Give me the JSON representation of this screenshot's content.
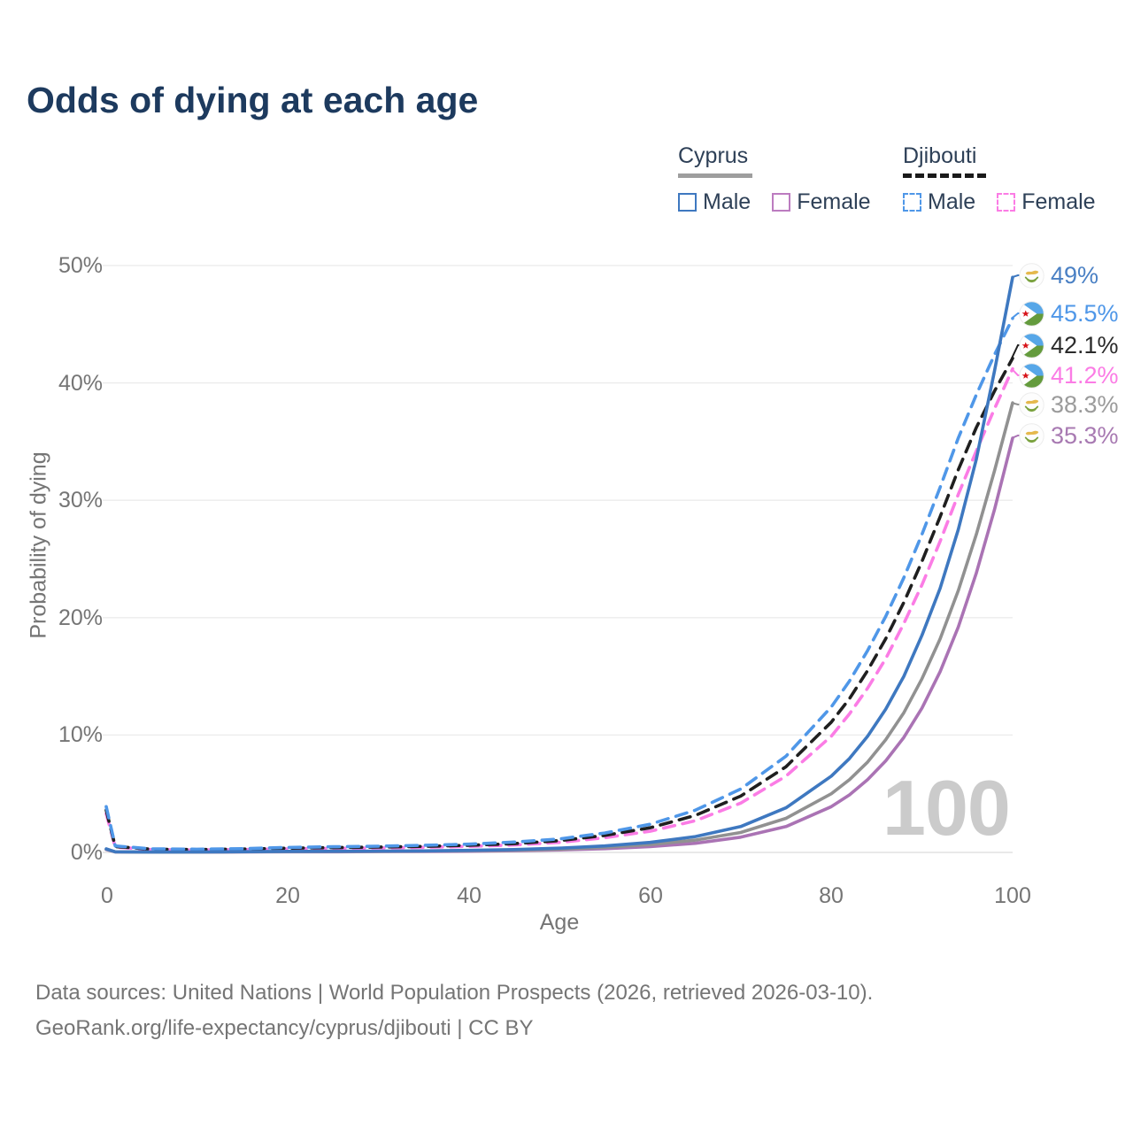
{
  "title": "Odds of dying at each age",
  "legend": {
    "groups": [
      {
        "name": "Cyprus",
        "line_style": "solid",
        "line_color": "#9e9e9e",
        "items": [
          {
            "label": "Male",
            "color": "#3e78c0",
            "dashed": false
          },
          {
            "label": "Female",
            "color": "#bc7cc0",
            "dashed": false
          }
        ]
      },
      {
        "name": "Djibouti",
        "line_style": "dashed",
        "line_color": "#1a1a1a",
        "items": [
          {
            "label": "Male",
            "color": "#4f97e8",
            "dashed": true
          },
          {
            "label": "Female",
            "color": "#fb7ce5",
            "dashed": true
          }
        ]
      }
    ]
  },
  "chart_data": {
    "type": "line",
    "title": "Odds of dying at each age",
    "xlabel": "Age",
    "ylabel": "Probability of dying",
    "xlim": [
      0,
      100
    ],
    "ylim": [
      0,
      50
    ],
    "grid": "horizontal",
    "legend_position": "top-right",
    "xticks": [
      "0",
      "20",
      "40",
      "60",
      "80",
      "100"
    ],
    "ytick_labels": [
      "0%",
      "10%",
      "20%",
      "30%",
      "40%",
      "50%"
    ],
    "ytick_values": [
      0,
      10,
      20,
      30,
      40,
      50
    ],
    "ages": [
      0,
      1,
      5,
      10,
      15,
      20,
      25,
      30,
      35,
      40,
      45,
      50,
      55,
      60,
      65,
      70,
      75,
      80,
      82,
      84,
      86,
      88,
      90,
      92,
      94,
      96,
      98,
      100
    ],
    "series": [
      {
        "id": "cyprus-male",
        "country": "Cyprus",
        "sex": "male",
        "color": "#3e78c0",
        "label_color": "#4a80c4",
        "dash": "solid",
        "flag": "cyprus",
        "end_label": "49%",
        "values": [
          0.3,
          0.05,
          0.03,
          0.04,
          0.06,
          0.09,
          0.1,
          0.11,
          0.13,
          0.17,
          0.24,
          0.36,
          0.55,
          0.85,
          1.35,
          2.2,
          3.8,
          6.5,
          8.0,
          9.9,
          12.2,
          15.0,
          18.5,
          22.5,
          27.5,
          33.5,
          41.0,
          49.0
        ]
      },
      {
        "id": "djibouti-male",
        "country": "Djibouti",
        "sex": "male",
        "color": "#4f97e8",
        "label_color": "#4f97e8",
        "dash": "dashed",
        "flag": "djibouti",
        "end_label": "45.5%",
        "values": [
          3.9,
          0.55,
          0.3,
          0.27,
          0.32,
          0.42,
          0.48,
          0.53,
          0.6,
          0.7,
          0.88,
          1.15,
          1.65,
          2.4,
          3.6,
          5.4,
          8.2,
          12.4,
          14.6,
          17.2,
          20.1,
          23.4,
          27.1,
          31.1,
          35.3,
          39.0,
          42.4,
          45.5
        ]
      },
      {
        "id": "djibouti-total",
        "country": "Djibouti",
        "sex": "both",
        "color": "#1f1f1f",
        "label_color": "#2b2b2b",
        "dash": "dashed",
        "flag": "djibouti",
        "end_label": "42.1%",
        "values": [
          3.6,
          0.5,
          0.27,
          0.24,
          0.28,
          0.36,
          0.41,
          0.45,
          0.51,
          0.6,
          0.75,
          1.0,
          1.45,
          2.1,
          3.15,
          4.8,
          7.3,
          11.1,
          13.1,
          15.5,
          18.2,
          21.3,
          24.8,
          28.6,
          32.6,
          36.2,
          39.3,
          42.1
        ]
      },
      {
        "id": "djibouti-female",
        "country": "Djibouti",
        "sex": "female",
        "color": "#fb7ce5",
        "label_color": "#fb7ce5",
        "dash": "dashed",
        "flag": "djibouti",
        "end_label": "41.2%",
        "values": [
          3.3,
          0.45,
          0.24,
          0.21,
          0.24,
          0.3,
          0.34,
          0.38,
          0.43,
          0.51,
          0.63,
          0.85,
          1.25,
          1.8,
          2.7,
          4.2,
          6.5,
          9.9,
          11.8,
          14.0,
          16.5,
          19.5,
          22.8,
          26.5,
          30.5,
          34.2,
          37.8,
          41.2
        ]
      },
      {
        "id": "cyprus-total",
        "country": "Cyprus",
        "sex": "both",
        "color": "#919191",
        "label_color": "#9b9b9b",
        "dash": "solid",
        "flag": "cyprus",
        "end_label": "38.3%",
        "values": [
          0.27,
          0.045,
          0.025,
          0.03,
          0.05,
          0.07,
          0.08,
          0.09,
          0.11,
          0.14,
          0.19,
          0.28,
          0.43,
          0.66,
          1.05,
          1.7,
          2.9,
          5.0,
          6.2,
          7.7,
          9.6,
          11.9,
          14.8,
          18.2,
          22.3,
          27.1,
          32.5,
          38.3
        ]
      },
      {
        "id": "cyprus-female",
        "country": "Cyprus",
        "sex": "female",
        "color": "#aa73b4",
        "label_color": "#a87ab2",
        "dash": "solid",
        "flag": "cyprus",
        "end_label": "35.3%",
        "values": [
          0.24,
          0.04,
          0.02,
          0.025,
          0.04,
          0.05,
          0.055,
          0.065,
          0.08,
          0.1,
          0.14,
          0.21,
          0.32,
          0.49,
          0.78,
          1.3,
          2.2,
          3.9,
          4.9,
          6.2,
          7.8,
          9.8,
          12.3,
          15.4,
          19.2,
          23.8,
          29.2,
          35.3
        ]
      }
    ]
  },
  "watermark": "100",
  "icons": {
    "cyprus_flag": {
      "background": "#fdfdfd",
      "island": "#e5b94e",
      "branches": "#7aa23f"
    },
    "djibouti_flag": {
      "blue": "#57a7e8",
      "green": "#649b3d",
      "white": "#ffffff",
      "star": "#d7141a"
    }
  },
  "footer": {
    "line1": "Data sources: United Nations | World Population Prospects (2026, retrieved 2026-03-10).",
    "line2": "GeoRank.org/life-expectancy/cyprus/djibouti | CC BY"
  }
}
